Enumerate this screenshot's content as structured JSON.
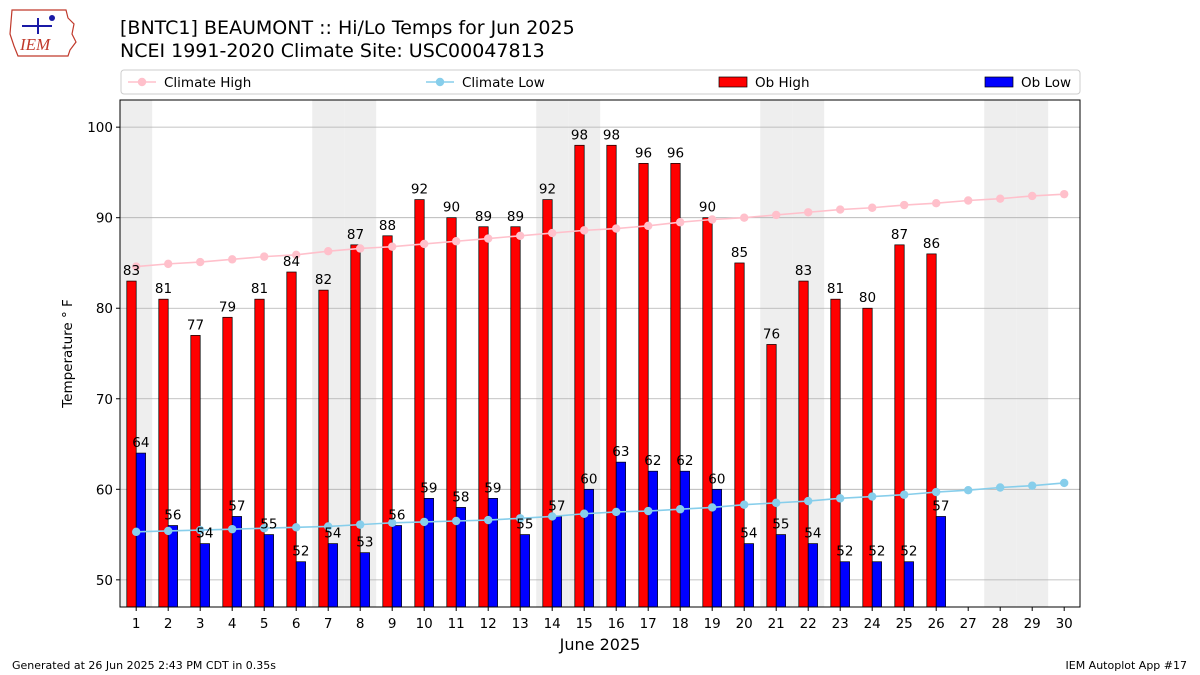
{
  "header": {
    "title_line1": "[BNTC1] BEAUMONT :: Hi/Lo Temps for Jun 2025",
    "title_line2": "NCEI 1991-2020 Climate Site: USC00047813",
    "logo_text": "IEM"
  },
  "footer": {
    "left": "Generated at 26 Jun 2025 2:43 PM CDT in 0.35s",
    "right": "IEM Autoplot App #17"
  },
  "colors": {
    "ob_high": "#ff0000",
    "ob_low": "#0000ff",
    "climate_high": "#ffc0cb",
    "climate_low": "#87ceeb",
    "weekend_shade": "#eeeeee",
    "grid": "#b0b0b0"
  },
  "chart_data": {
    "type": "bar",
    "xlabel": "June 2025",
    "ylabel": "Temperature ° F",
    "ylim": [
      47,
      103
    ],
    "yticks": [
      50,
      60,
      70,
      80,
      90,
      100
    ],
    "grid": "horizontal",
    "legend_placement": "top, single row",
    "categories": [
      "1",
      "2",
      "3",
      "4",
      "5",
      "6",
      "7",
      "8",
      "9",
      "10",
      "11",
      "12",
      "13",
      "14",
      "15",
      "16",
      "17",
      "18",
      "19",
      "20",
      "21",
      "22",
      "23",
      "24",
      "25",
      "26",
      "27",
      "28",
      "29",
      "30"
    ],
    "shaded_days": [
      "1",
      "7",
      "8",
      "14",
      "15",
      "21",
      "22",
      "28",
      "29"
    ],
    "series": [
      {
        "name": "Ob High",
        "type": "bar",
        "values": [
          83,
          81,
          77,
          79,
          81,
          84,
          82,
          87,
          88,
          92,
          90,
          89,
          89,
          92,
          98,
          98,
          96,
          96,
          90,
          85,
          76,
          83,
          81,
          80,
          87,
          86,
          null,
          null,
          null,
          null
        ]
      },
      {
        "name": "Ob Low",
        "type": "bar",
        "values": [
          64,
          56,
          54,
          57,
          55,
          52,
          54,
          53,
          56,
          59,
          58,
          59,
          55,
          57,
          60,
          63,
          62,
          62,
          60,
          54,
          55,
          54,
          52,
          52,
          52,
          57,
          null,
          null,
          null,
          null
        ]
      },
      {
        "name": "Climate High",
        "type": "line",
        "values": [
          84.6,
          84.9,
          85.1,
          85.4,
          85.7,
          85.9,
          86.3,
          86.6,
          86.8,
          87.1,
          87.4,
          87.7,
          88.0,
          88.3,
          88.6,
          88.8,
          89.1,
          89.5,
          89.8,
          90.0,
          90.3,
          90.6,
          90.9,
          91.1,
          91.4,
          91.6,
          91.9,
          92.1,
          92.4,
          92.6
        ]
      },
      {
        "name": "Climate Low",
        "type": "line",
        "values": [
          55.3,
          55.4,
          55.5,
          55.6,
          55.7,
          55.8,
          55.9,
          56.1,
          56.3,
          56.4,
          56.5,
          56.6,
          56.8,
          57.0,
          57.3,
          57.5,
          57.6,
          57.8,
          58.0,
          58.3,
          58.5,
          58.7,
          59.0,
          59.2,
          59.4,
          59.7,
          59.9,
          60.2,
          60.4,
          60.7
        ]
      }
    ]
  }
}
